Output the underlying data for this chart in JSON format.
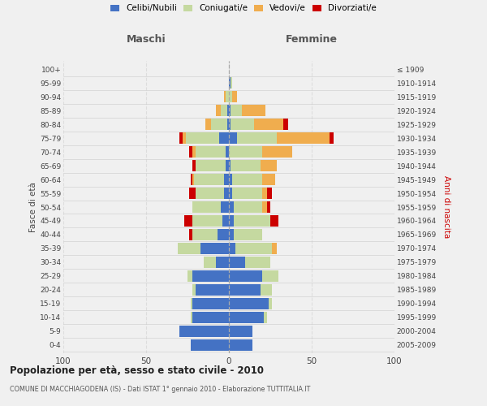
{
  "age_groups": [
    "0-4",
    "5-9",
    "10-14",
    "15-19",
    "20-24",
    "25-29",
    "30-34",
    "35-39",
    "40-44",
    "45-49",
    "50-54",
    "55-59",
    "60-64",
    "65-69",
    "70-74",
    "75-79",
    "80-84",
    "85-89",
    "90-94",
    "95-99",
    "100+"
  ],
  "birth_years": [
    "2005-2009",
    "2000-2004",
    "1995-1999",
    "1990-1994",
    "1985-1989",
    "1980-1984",
    "1975-1979",
    "1970-1974",
    "1965-1969",
    "1960-1964",
    "1955-1959",
    "1950-1954",
    "1945-1949",
    "1940-1944",
    "1935-1939",
    "1930-1934",
    "1925-1929",
    "1920-1924",
    "1915-1919",
    "1910-1914",
    "≤ 1909"
  ],
  "colors": {
    "celibi": "#4472c4",
    "coniugati": "#c5d9a0",
    "vedovi": "#f0ad4e",
    "divorziati": "#cc0000"
  },
  "males": {
    "celibi": [
      23,
      30,
      22,
      22,
      20,
      22,
      8,
      17,
      7,
      4,
      5,
      3,
      3,
      2,
      2,
      6,
      1,
      1,
      0,
      0,
      0
    ],
    "coniugati": [
      0,
      0,
      1,
      1,
      2,
      3,
      7,
      14,
      15,
      18,
      17,
      17,
      18,
      18,
      18,
      20,
      10,
      4,
      2,
      0,
      0
    ],
    "vedovi": [
      0,
      0,
      0,
      0,
      0,
      0,
      0,
      0,
      0,
      0,
      0,
      0,
      1,
      0,
      2,
      2,
      3,
      3,
      1,
      0,
      0
    ],
    "divorziati": [
      0,
      0,
      0,
      0,
      0,
      0,
      0,
      0,
      2,
      5,
      0,
      4,
      1,
      2,
      2,
      2,
      0,
      0,
      0,
      0,
      0
    ]
  },
  "females": {
    "nubili": [
      14,
      14,
      21,
      24,
      19,
      20,
      10,
      4,
      3,
      3,
      3,
      2,
      2,
      1,
      0,
      5,
      1,
      1,
      0,
      1,
      0
    ],
    "coniugati": [
      0,
      0,
      2,
      2,
      7,
      10,
      15,
      22,
      17,
      22,
      17,
      18,
      18,
      18,
      20,
      24,
      14,
      7,
      2,
      1,
      0
    ],
    "vedovi": [
      0,
      0,
      0,
      0,
      0,
      0,
      0,
      3,
      0,
      0,
      3,
      3,
      8,
      10,
      18,
      32,
      18,
      14,
      3,
      0,
      0
    ],
    "divorziati": [
      0,
      0,
      0,
      0,
      0,
      0,
      0,
      0,
      0,
      5,
      2,
      3,
      0,
      0,
      0,
      2,
      3,
      0,
      0,
      0,
      0
    ]
  },
  "xlim": [
    -100,
    100
  ],
  "xticks": [
    -100,
    -50,
    0,
    50,
    100
  ],
  "xticklabels": [
    "100",
    "50",
    "0",
    "50",
    "100"
  ],
  "title": "Popolazione per età, sesso e stato civile - 2010",
  "subtitle": "COMUNE DI MACCHIAGODENA (IS) - Dati ISTAT 1° gennaio 2010 - Elaborazione TUTTITALIA.IT",
  "ylabel_left": "Fasce di età",
  "ylabel_right": "Anni di nascita",
  "header_maschi": "Maschi",
  "header_femmine": "Femmine",
  "legend_labels": [
    "Celibi/Nubili",
    "Coniugati/e",
    "Vedovi/e",
    "Divorziati/e"
  ],
  "background_color": "#f0f0f0",
  "bar_height": 0.82
}
